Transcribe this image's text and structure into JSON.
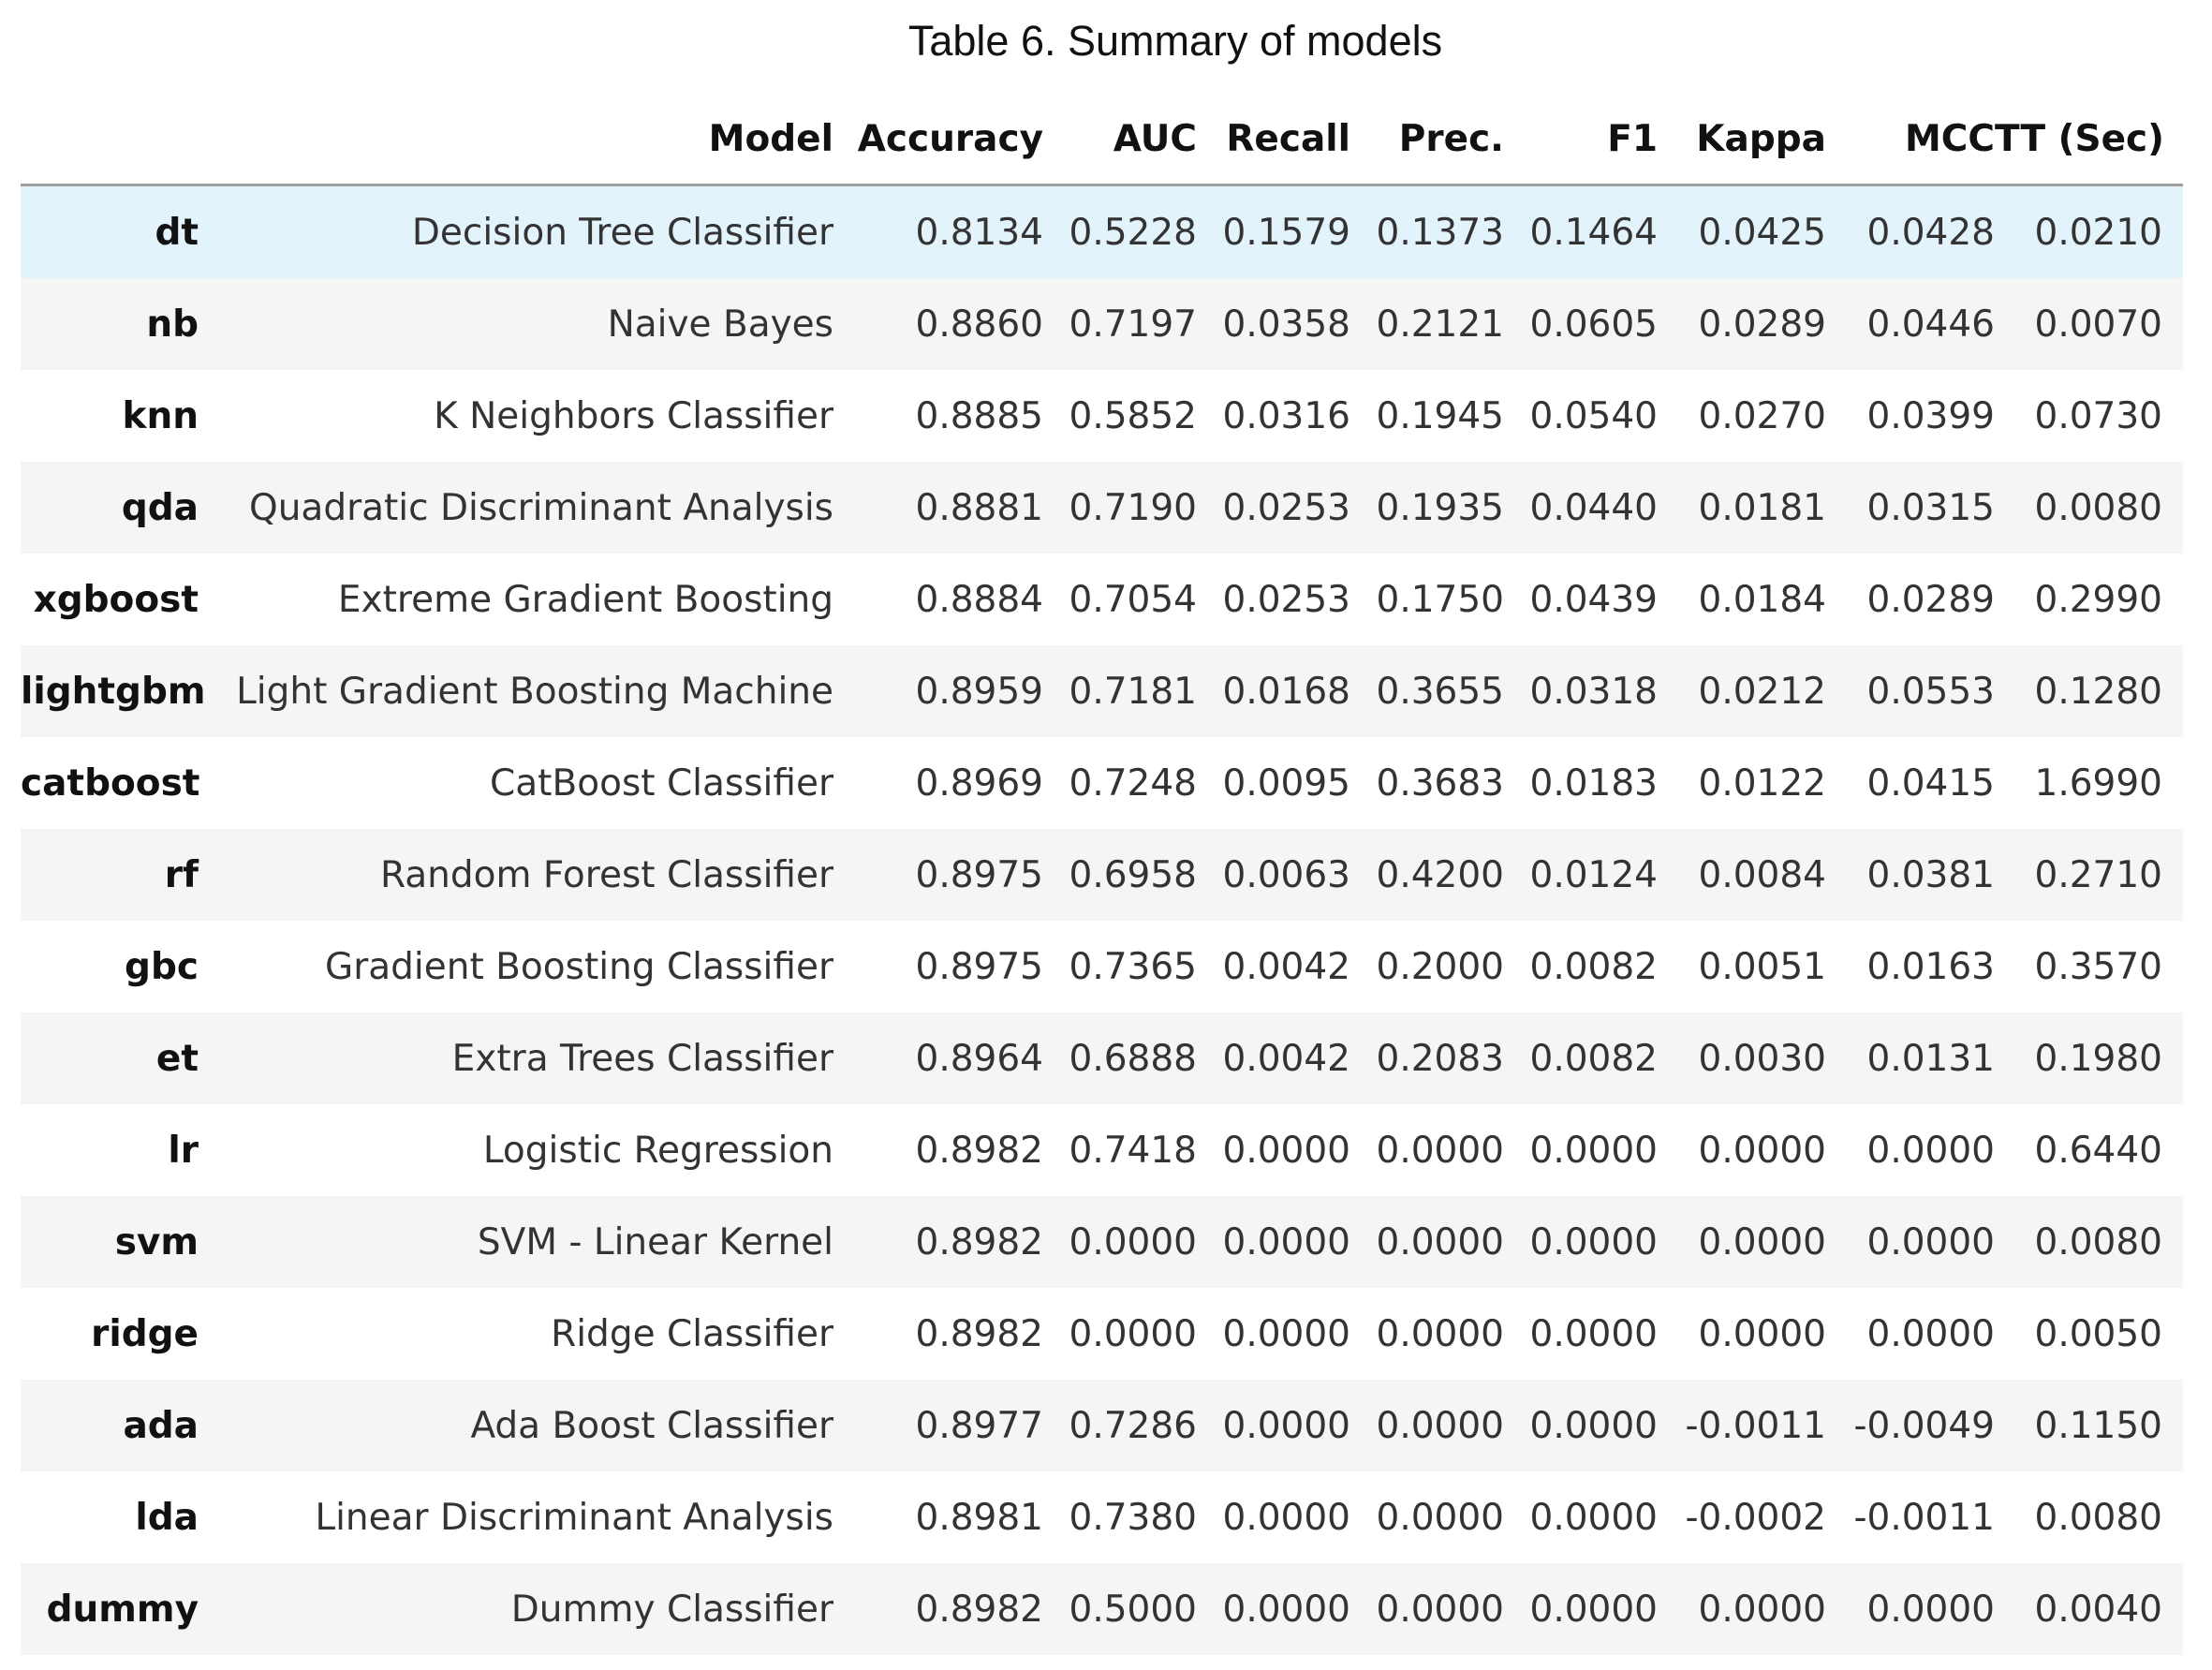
{
  "caption": "Table 6. Summary of models",
  "columns": [
    "",
    "Model",
    "Accuracy",
    "AUC",
    "Recall",
    "Prec.",
    "F1",
    "Kappa",
    "MCC",
    "TT (Sec)"
  ],
  "rows": [
    {
      "id": "dt",
      "model": "Decision Tree Classifier",
      "accuracy": "0.8134",
      "auc": "0.5228",
      "recall": "0.1579",
      "prec": "0.1373",
      "f1": "0.1464",
      "kappa": "0.0425",
      "mcc": "0.0428",
      "tt": "0.0210"
    },
    {
      "id": "nb",
      "model": "Naive Bayes",
      "accuracy": "0.8860",
      "auc": "0.7197",
      "recall": "0.0358",
      "prec": "0.2121",
      "f1": "0.0605",
      "kappa": "0.0289",
      "mcc": "0.0446",
      "tt": "0.0070"
    },
    {
      "id": "knn",
      "model": "K Neighbors Classifier",
      "accuracy": "0.8885",
      "auc": "0.5852",
      "recall": "0.0316",
      "prec": "0.1945",
      "f1": "0.0540",
      "kappa": "0.0270",
      "mcc": "0.0399",
      "tt": "0.0730"
    },
    {
      "id": "qda",
      "model": "Quadratic Discriminant Analysis",
      "accuracy": "0.8881",
      "auc": "0.7190",
      "recall": "0.0253",
      "prec": "0.1935",
      "f1": "0.0440",
      "kappa": "0.0181",
      "mcc": "0.0315",
      "tt": "0.0080"
    },
    {
      "id": "xgboost",
      "model": "Extreme Gradient Boosting",
      "accuracy": "0.8884",
      "auc": "0.7054",
      "recall": "0.0253",
      "prec": "0.1750",
      "f1": "0.0439",
      "kappa": "0.0184",
      "mcc": "0.0289",
      "tt": "0.2990"
    },
    {
      "id": "lightgbm",
      "model": "Light Gradient Boosting Machine",
      "accuracy": "0.8959",
      "auc": "0.7181",
      "recall": "0.0168",
      "prec": "0.3655",
      "f1": "0.0318",
      "kappa": "0.0212",
      "mcc": "0.0553",
      "tt": "0.1280"
    },
    {
      "id": "catboost",
      "model": "CatBoost Classifier",
      "accuracy": "0.8969",
      "auc": "0.7248",
      "recall": "0.0095",
      "prec": "0.3683",
      "f1": "0.0183",
      "kappa": "0.0122",
      "mcc": "0.0415",
      "tt": "1.6990"
    },
    {
      "id": "rf",
      "model": "Random Forest Classifier",
      "accuracy": "0.8975",
      "auc": "0.6958",
      "recall": "0.0063",
      "prec": "0.4200",
      "f1": "0.0124",
      "kappa": "0.0084",
      "mcc": "0.0381",
      "tt": "0.2710"
    },
    {
      "id": "gbc",
      "model": "Gradient Boosting Classifier",
      "accuracy": "0.8975",
      "auc": "0.7365",
      "recall": "0.0042",
      "prec": "0.2000",
      "f1": "0.0082",
      "kappa": "0.0051",
      "mcc": "0.0163",
      "tt": "0.3570"
    },
    {
      "id": "et",
      "model": "Extra Trees Classifier",
      "accuracy": "0.8964",
      "auc": "0.6888",
      "recall": "0.0042",
      "prec": "0.2083",
      "f1": "0.0082",
      "kappa": "0.0030",
      "mcc": "0.0131",
      "tt": "0.1980"
    },
    {
      "id": "lr",
      "model": "Logistic Regression",
      "accuracy": "0.8982",
      "auc": "0.7418",
      "recall": "0.0000",
      "prec": "0.0000",
      "f1": "0.0000",
      "kappa": "0.0000",
      "mcc": "0.0000",
      "tt": "0.6440"
    },
    {
      "id": "svm",
      "model": "SVM - Linear Kernel",
      "accuracy": "0.8982",
      "auc": "0.0000",
      "recall": "0.0000",
      "prec": "0.0000",
      "f1": "0.0000",
      "kappa": "0.0000",
      "mcc": "0.0000",
      "tt": "0.0080"
    },
    {
      "id": "ridge",
      "model": "Ridge Classifier",
      "accuracy": "0.8982",
      "auc": "0.0000",
      "recall": "0.0000",
      "prec": "0.0000",
      "f1": "0.0000",
      "kappa": "0.0000",
      "mcc": "0.0000",
      "tt": "0.0050"
    },
    {
      "id": "ada",
      "model": "Ada Boost Classifier",
      "accuracy": "0.8977",
      "auc": "0.7286",
      "recall": "0.0000",
      "prec": "0.0000",
      "f1": "0.0000",
      "kappa": "-0.0011",
      "mcc": "-0.0049",
      "tt": "0.1150"
    },
    {
      "id": "lda",
      "model": "Linear Discriminant Analysis",
      "accuracy": "0.8981",
      "auc": "0.7380",
      "recall": "0.0000",
      "prec": "0.0000",
      "f1": "0.0000",
      "kappa": "-0.0002",
      "mcc": "-0.0011",
      "tt": "0.0080"
    },
    {
      "id": "dummy",
      "model": "Dummy Classifier",
      "accuracy": "0.8982",
      "auc": "0.5000",
      "recall": "0.0000",
      "prec": "0.0000",
      "f1": "0.0000",
      "kappa": "0.0000",
      "mcc": "0.0000",
      "tt": "0.0040"
    }
  ],
  "highlight_row": "dt",
  "colors": {
    "highlight": "#e3f3fc",
    "stripe": "#f5f5f5",
    "header_rule": "#9e9e9e"
  }
}
